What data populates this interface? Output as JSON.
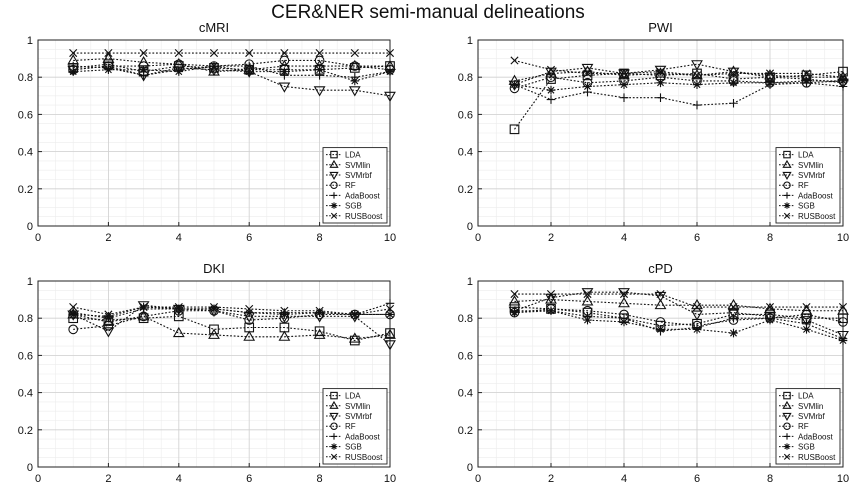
{
  "figure": {
    "title": "CER&NER semi-manual delineations"
  },
  "legend_entries": [
    {
      "name": "LDA",
      "marker": "square"
    },
    {
      "name": "SVMlin",
      "marker": "triangle-up"
    },
    {
      "name": "SVMrbf",
      "marker": "triangle-down"
    },
    {
      "name": "RF",
      "marker": "circle"
    },
    {
      "name": "AdaBoost",
      "marker": "plus"
    },
    {
      "name": "SGB",
      "marker": "asterisk"
    },
    {
      "name": "RUSBoost",
      "marker": "x"
    }
  ],
  "chart_data": [
    {
      "type": "line",
      "title": "cMRI",
      "x": [
        1,
        2,
        3,
        4,
        5,
        6,
        7,
        8,
        9,
        10
      ],
      "xlim": [
        0,
        10
      ],
      "ylim": [
        0,
        1
      ],
      "xticks": [
        "0",
        "2",
        "4",
        "6",
        "8",
        "10"
      ],
      "yticks": [
        "0",
        "0.2",
        "0.4",
        "0.6",
        "0.8",
        "1"
      ],
      "legend": "bottom-right",
      "series": [
        {
          "name": "LDA",
          "values": [
            0.85,
            0.87,
            0.83,
            0.86,
            0.85,
            0.84,
            0.84,
            0.84,
            0.85,
            0.86
          ]
        },
        {
          "name": "SVMlin",
          "values": [
            0.89,
            0.9,
            0.88,
            0.87,
            0.83,
            0.84,
            0.86,
            0.86,
            0.86,
            0.86
          ]
        },
        {
          "name": "SVMrbf",
          "values": [
            0.84,
            0.86,
            0.81,
            0.85,
            0.84,
            0.83,
            0.75,
            0.73,
            0.73,
            0.7
          ]
        },
        {
          "name": "RF",
          "values": [
            0.84,
            0.86,
            0.86,
            0.87,
            0.86,
            0.87,
            0.89,
            0.89,
            0.86,
            0.84
          ]
        },
        {
          "name": "AdaBoost",
          "values": [
            0.86,
            0.85,
            0.81,
            0.84,
            0.86,
            0.86,
            0.81,
            0.81,
            0.8,
            0.83
          ]
        },
        {
          "name": "SGB",
          "values": [
            0.83,
            0.84,
            0.84,
            0.83,
            0.86,
            0.83,
            0.83,
            0.84,
            0.78,
            0.83
          ]
        },
        {
          "name": "RUSBoost",
          "values": [
            0.93,
            0.93,
            0.93,
            0.93,
            0.93,
            0.93,
            0.93,
            0.93,
            0.93,
            0.93
          ]
        }
      ]
    },
    {
      "type": "line",
      "title": "PWI",
      "x": [
        1,
        2,
        3,
        4,
        5,
        6,
        7,
        8,
        9,
        10
      ],
      "xlim": [
        0,
        10
      ],
      "ylim": [
        0,
        1
      ],
      "xticks": [
        "0",
        "2",
        "4",
        "6",
        "8",
        "10"
      ],
      "yticks": [
        "0",
        "0.2",
        "0.4",
        "0.6",
        "0.8",
        "1"
      ],
      "legend": "bottom-right",
      "series": [
        {
          "name": "LDA",
          "values": [
            0.52,
            0.79,
            0.81,
            0.82,
            0.81,
            0.82,
            0.79,
            0.8,
            0.81,
            0.83
          ]
        },
        {
          "name": "SVMlin",
          "values": [
            0.78,
            0.82,
            0.83,
            0.81,
            0.82,
            0.81,
            0.83,
            0.81,
            0.8,
            0.8
          ]
        },
        {
          "name": "SVMrbf",
          "values": [
            0.76,
            0.83,
            0.85,
            0.82,
            0.84,
            0.87,
            0.83,
            0.8,
            0.79,
            0.77
          ]
        },
        {
          "name": "RF",
          "values": [
            0.74,
            0.8,
            0.77,
            0.78,
            0.8,
            0.78,
            0.78,
            0.77,
            0.77,
            0.78
          ]
        },
        {
          "name": "AdaBoost",
          "values": [
            0.76,
            0.68,
            0.72,
            0.69,
            0.69,
            0.65,
            0.66,
            0.76,
            0.77,
            0.75
          ]
        },
        {
          "name": "SGB",
          "values": [
            0.76,
            0.73,
            0.75,
            0.76,
            0.77,
            0.76,
            0.77,
            0.77,
            0.78,
            0.78
          ]
        },
        {
          "name": "RUSBoost",
          "values": [
            0.89,
            0.84,
            0.82,
            0.82,
            0.83,
            0.81,
            0.82,
            0.82,
            0.82,
            0.8
          ]
        }
      ]
    },
    {
      "type": "line",
      "title": "DKI",
      "x": [
        1,
        2,
        3,
        4,
        5,
        6,
        7,
        8,
        9,
        10
      ],
      "xlim": [
        0,
        10
      ],
      "ylim": [
        0,
        1
      ],
      "xticks": [
        "0",
        "2",
        "4",
        "6",
        "8",
        "10"
      ],
      "yticks": [
        "0",
        "0.2",
        "0.4",
        "0.6",
        "0.8",
        "1"
      ],
      "legend": "bottom-right",
      "series": [
        {
          "name": "LDA",
          "values": [
            0.8,
            0.79,
            0.8,
            0.81,
            0.74,
            0.75,
            0.75,
            0.73,
            0.68,
            0.72
          ]
        },
        {
          "name": "SVMlin",
          "values": [
            0.82,
            0.78,
            0.81,
            0.72,
            0.71,
            0.7,
            0.7,
            0.71,
            0.69,
            0.71
          ]
        },
        {
          "name": "SVMrbf",
          "values": [
            0.82,
            0.73,
            0.87,
            0.85,
            0.84,
            0.81,
            0.81,
            0.81,
            0.81,
            0.66
          ]
        },
        {
          "name": "RF",
          "values": [
            0.74,
            0.76,
            0.81,
            0.84,
            0.84,
            0.79,
            0.8,
            0.82,
            0.82,
            0.82
          ]
        },
        {
          "name": "AdaBoost",
          "values": [
            0.83,
            0.8,
            0.85,
            0.85,
            0.85,
            0.83,
            0.83,
            0.83,
            0.82,
            0.88
          ]
        },
        {
          "name": "SGB",
          "values": [
            0.82,
            0.81,
            0.86,
            0.85,
            0.85,
            0.83,
            0.82,
            0.83,
            0.82,
            0.82
          ]
        },
        {
          "name": "RUSBoost",
          "values": [
            0.86,
            0.82,
            0.86,
            0.86,
            0.86,
            0.85,
            0.84,
            0.84,
            0.82,
            0.85
          ]
        }
      ]
    },
    {
      "type": "line",
      "title": "cPD",
      "x": [
        1,
        2,
        3,
        4,
        5,
        6,
        7,
        8,
        9,
        10
      ],
      "xlim": [
        0,
        10
      ],
      "ylim": [
        0,
        1
      ],
      "xticks": [
        "0",
        "2",
        "4",
        "6",
        "8",
        "10"
      ],
      "yticks": [
        "0",
        "0.2",
        "0.4",
        "0.6",
        "0.8",
        "1"
      ],
      "legend": "bottom-right",
      "series": [
        {
          "name": "LDA",
          "values": [
            0.86,
            0.85,
            0.83,
            0.8,
            0.76,
            0.77,
            0.82,
            0.82,
            0.8,
            0.8
          ]
        },
        {
          "name": "SVMlin",
          "values": [
            0.89,
            0.9,
            0.89,
            0.88,
            0.87,
            0.87,
            0.87,
            0.85,
            0.84,
            0.84
          ]
        },
        {
          "name": "SVMrbf",
          "values": [
            0.84,
            0.91,
            0.94,
            0.94,
            0.92,
            0.82,
            0.83,
            0.81,
            0.79,
            0.71
          ]
        },
        {
          "name": "RF",
          "values": [
            0.83,
            0.85,
            0.84,
            0.82,
            0.78,
            0.76,
            0.79,
            0.8,
            0.82,
            0.78
          ]
        },
        {
          "name": "AdaBoost",
          "values": [
            0.84,
            0.84,
            0.81,
            0.8,
            0.73,
            0.75,
            0.8,
            0.8,
            0.77,
            0.69
          ]
        },
        {
          "name": "SGB",
          "values": [
            0.83,
            0.84,
            0.79,
            0.78,
            0.74,
            0.74,
            0.72,
            0.79,
            0.74,
            0.68
          ]
        },
        {
          "name": "RUSBoost",
          "values": [
            0.93,
            0.93,
            0.93,
            0.93,
            0.93,
            0.86,
            0.86,
            0.86,
            0.86,
            0.86
          ]
        }
      ]
    }
  ]
}
